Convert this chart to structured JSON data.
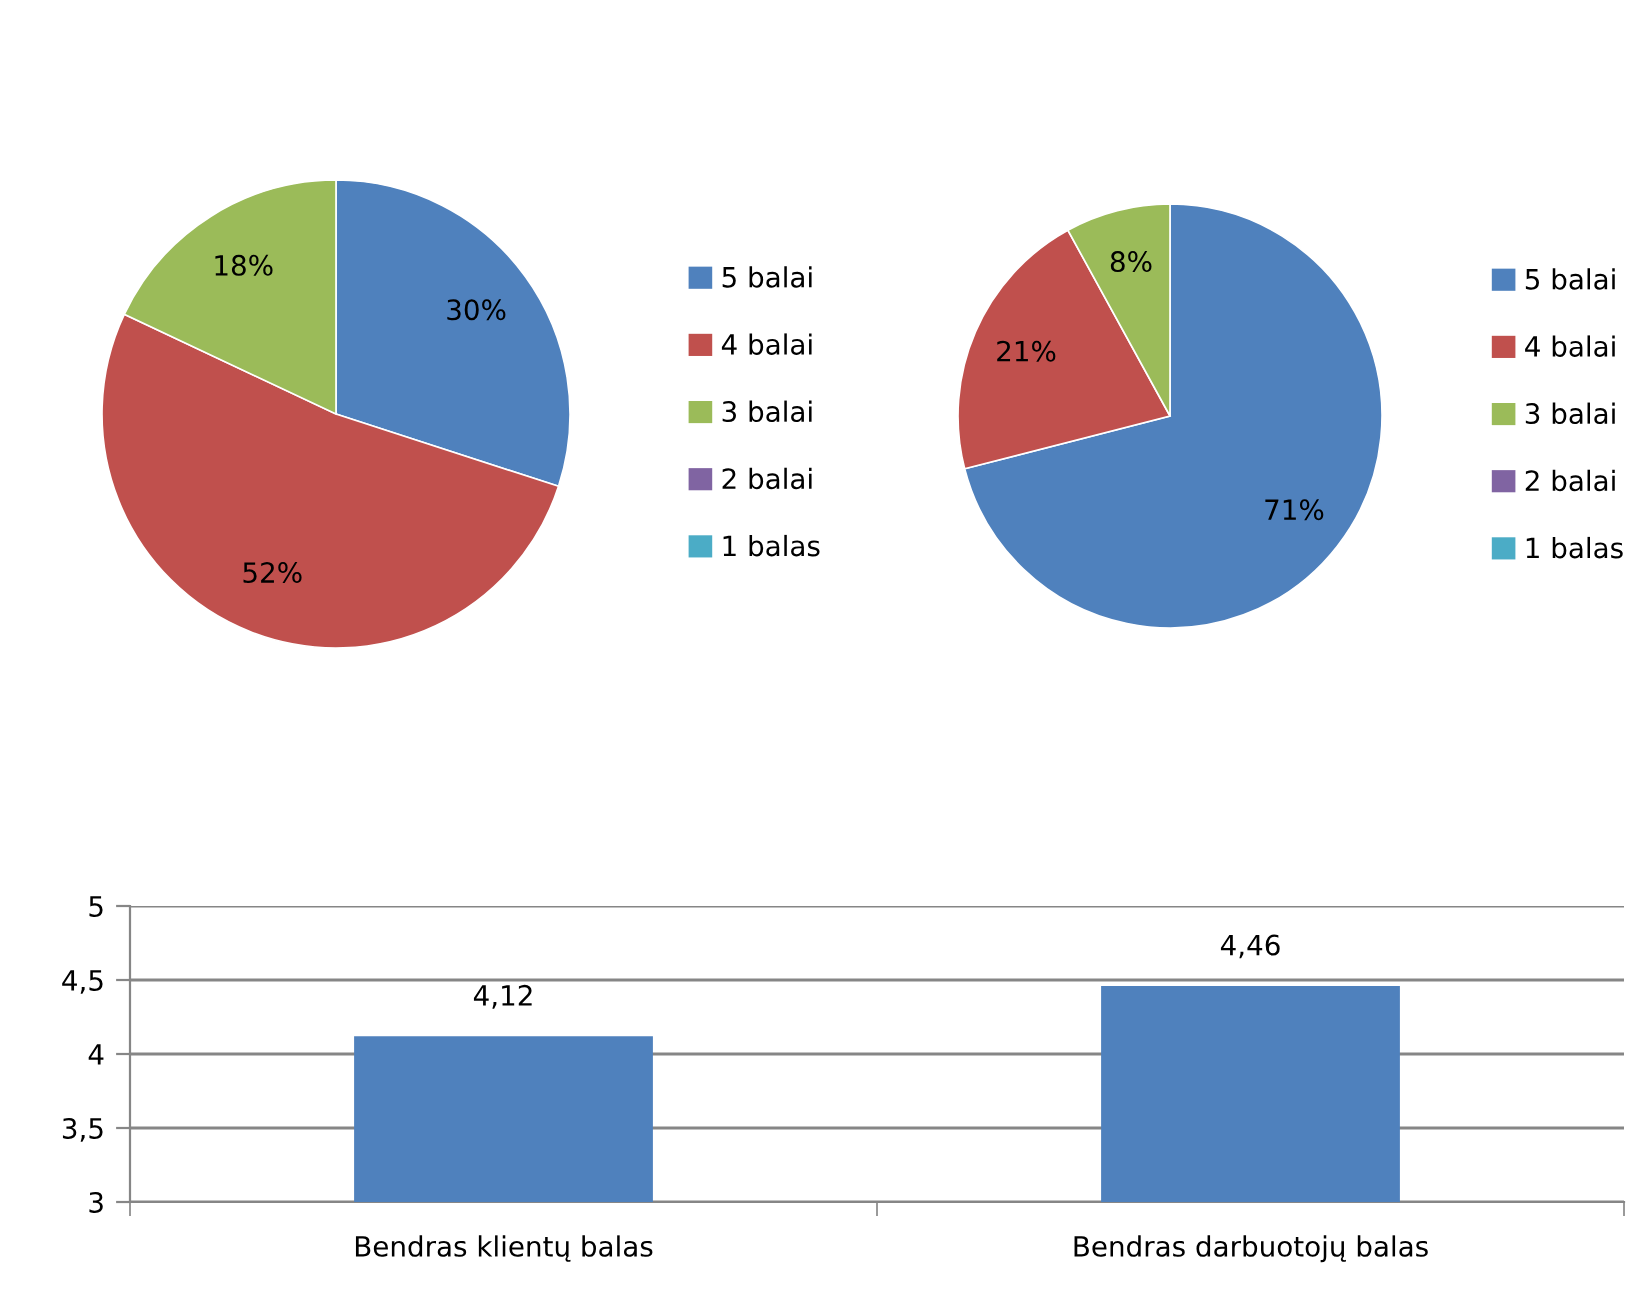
{
  "chart_data": [
    {
      "type": "pie",
      "categories": [
        "5 balai",
        "4 balai",
        "3 balai",
        "2 balai",
        "1 balas"
      ],
      "values": [
        30,
        52,
        18,
        0,
        0
      ],
      "value_labels": [
        "30%",
        "52%",
        "18%",
        null,
        null
      ],
      "colors": [
        "#4f81bd",
        "#c0504d",
        "#9bbb59",
        "#8064a2",
        "#4bacc6"
      ],
      "legend": "right"
    },
    {
      "type": "pie",
      "categories": [
        "5 balai",
        "4 balai",
        "3 balai",
        "2 balai",
        "1 balas"
      ],
      "values": [
        71,
        21,
        8,
        0,
        0
      ],
      "value_labels": [
        "71%",
        "21%",
        "8%",
        null,
        null
      ],
      "colors": [
        "#4f81bd",
        "#c0504d",
        "#9bbb59",
        "#8064a2",
        "#4bacc6"
      ],
      "legend": "right"
    },
    {
      "type": "bar",
      "categories": [
        "Bendras klientų balas",
        "Bendras darbuotojų balas"
      ],
      "values": [
        4.12,
        4.46
      ],
      "value_labels": [
        "4,12",
        "4,46"
      ],
      "color": "#4f81bd",
      "ylim": [
        3,
        5
      ],
      "yticks": [
        3,
        {
          "value": 3.5,
          "label": "3,5"
        },
        4,
        {
          "value": 4.5,
          "label": "4,5"
        },
        5
      ],
      "grid": "y"
    }
  ]
}
